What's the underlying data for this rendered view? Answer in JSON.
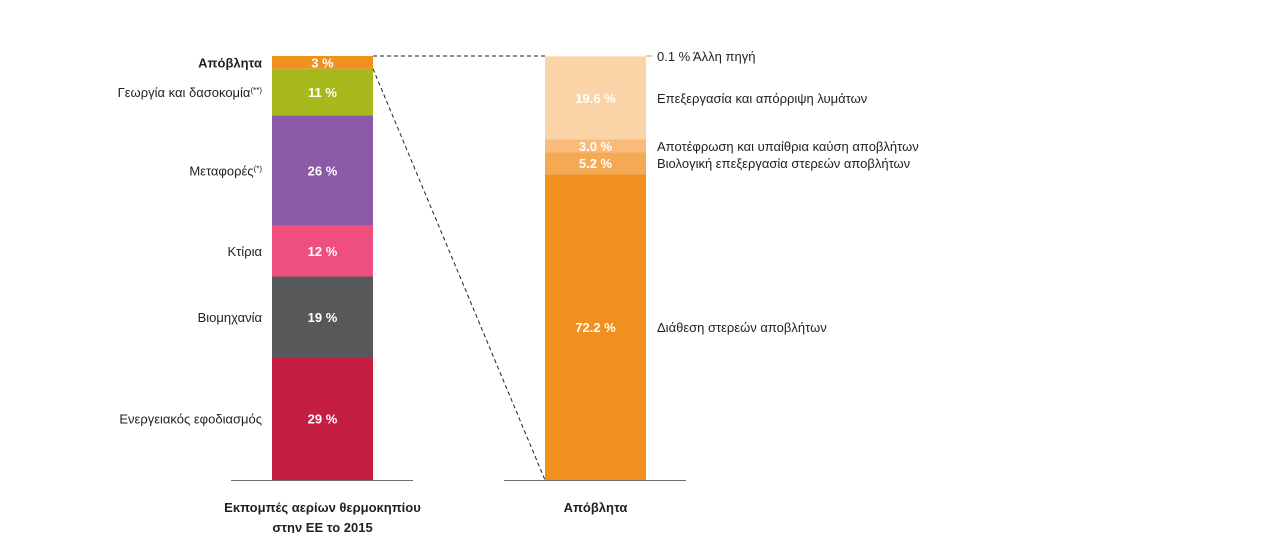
{
  "chart_data": [
    {
      "type": "stacked-bar",
      "title_lines": [
        "Εκπομπές αερίων θερμοκηπίου",
        "στην ΕΕ το 2015"
      ],
      "unit": "%",
      "segments": [
        {
          "label": "Ενεργειακός εφοδιασμός",
          "value": 29,
          "display": "29 %",
          "color": "#c41f42"
        },
        {
          "label": "Βιομηχανία",
          "value": 19,
          "display": "19 %",
          "color": "#58585b"
        },
        {
          "label": "Κτίρια",
          "value": 12,
          "display": "12 %",
          "color": "#ee4f7e"
        },
        {
          "label": "Μεταφορές",
          "label_sup": "(*)",
          "value": 26,
          "display": "26 %",
          "color": "#8a5aa6"
        },
        {
          "label": "Γεωργία και δασοκομία",
          "label_sup": "(**)",
          "value": 11,
          "display": "11 %",
          "color": "#a8b91e"
        },
        {
          "label": "Απόβλητα",
          "value": 3,
          "display": "3 %",
          "color": "#f0901f"
        }
      ]
    },
    {
      "type": "stacked-bar",
      "title_lines": [
        "Απόβλητα"
      ],
      "unit": "%",
      "segments": [
        {
          "label": "Διάθεση στερεών αποβλήτων",
          "value": 72.2,
          "display": "72.2 %",
          "color": "#f0901f"
        },
        {
          "label": "Βιολογική επεξεργασία στερεών αποβλήτων",
          "value": 5.2,
          "display": "5.2 %",
          "color": "#f4a954"
        },
        {
          "label": "Αποτέφρωση και υπαίθρια καύση αποβλήτων",
          "value": 3.0,
          "display": "3.0 %",
          "color": "#f8bb7a"
        },
        {
          "label": "Επεξεργασία και απόρριψη λυμάτων",
          "value": 19.6,
          "display": "19.6 %",
          "color": "#fad3a7"
        },
        {
          "label": "Άλλη πηγή",
          "value": 0.1,
          "display": "0.1 %",
          "color": "#fce4c8"
        }
      ]
    }
  ]
}
